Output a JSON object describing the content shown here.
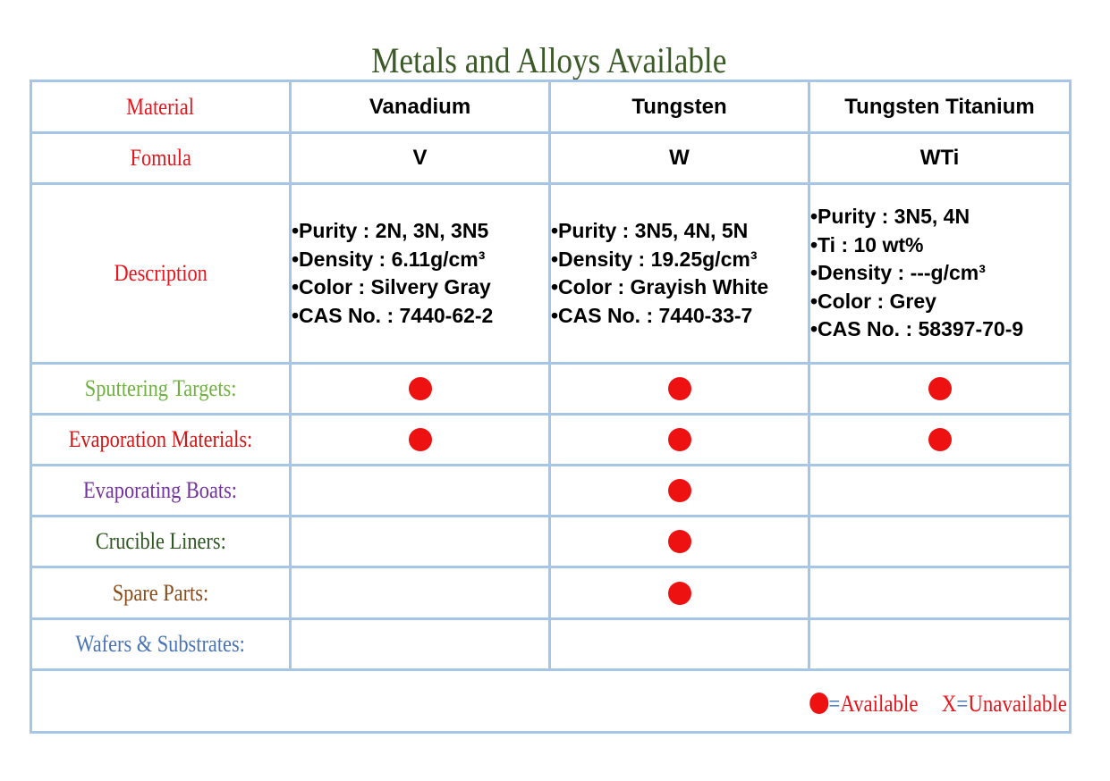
{
  "title": "Metals and Alloys Available",
  "colors": {
    "title": "#3b5a27",
    "row_label_default": "#e8141b",
    "border": "#a7c6e6",
    "dot": "#ee1111",
    "legend_eq": "#3d6fb5",
    "legend_text": "#e8141b"
  },
  "header_row": {
    "label": "Material",
    "label_color": "#e8141b"
  },
  "formula_row": {
    "label": "Fomula",
    "label_color": "#e8141b"
  },
  "description_row": {
    "label": "Description",
    "label_color": "#e8141b"
  },
  "materials": [
    {
      "name": "Vanadium",
      "formula": "V",
      "description": [
        "•Purity : 2N, 3N, 3N5",
        "•Density : 6.11g/cm³",
        "•Color : Silvery Gray",
        "•CAS No. : 7440-62-2"
      ]
    },
    {
      "name": "Tungsten",
      "formula": "W",
      "description": [
        "•Purity : 3N5, 4N, 5N",
        "•Density : 19.25g/cm³",
        "•Color : Grayish White",
        "•CAS No. : 7440-33-7"
      ]
    },
    {
      "name": "Tungsten Titanium",
      "formula": "WTi",
      "description": [
        "•Purity : 3N5, 4N",
        "•Ti : 10 wt%",
        "•Density : ---g/cm³",
        "•Color : Grey",
        "•CAS No. : 58397-70-9"
      ]
    }
  ],
  "availability_rows": [
    {
      "label": "Sputtering Targets:",
      "color": "#6fb13f",
      "available": [
        true,
        true,
        true
      ]
    },
    {
      "label": "Evaporation Materials:",
      "color": "#d01515",
      "available": [
        true,
        true,
        true
      ]
    },
    {
      "label": "Evaporating Boats:",
      "color": "#7230a0",
      "available": [
        false,
        true,
        false
      ]
    },
    {
      "label": "Crucible Liners:",
      "color": "#2f5522",
      "available": [
        false,
        true,
        false
      ]
    },
    {
      "label": "Spare Parts:",
      "color": "#8a4a1a",
      "available": [
        false,
        true,
        false
      ]
    },
    {
      "label": "Wafers & Substrates:",
      "color": "#4a74b8",
      "available": [
        false,
        false,
        false
      ]
    }
  ],
  "legend": {
    "available_eq": "=",
    "available_text": "Available",
    "unavailable_symbol": "X",
    "unavailable_eq": "=",
    "unavailable_text": "Unavailable"
  }
}
